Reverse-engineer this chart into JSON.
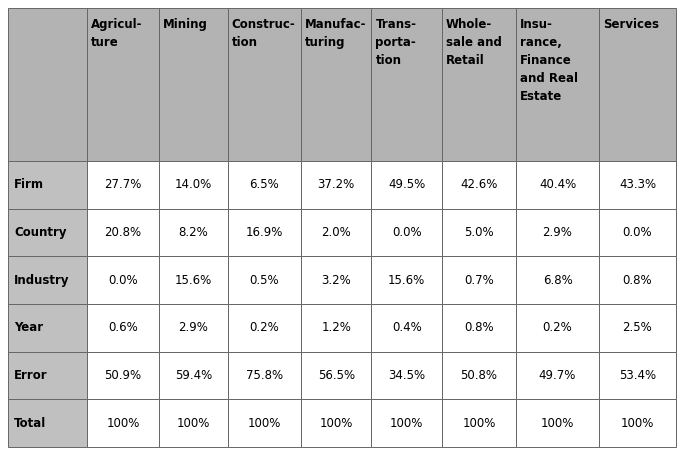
{
  "col_headers": [
    "Agricul-\nture",
    "Mining",
    "Construc-\ntion",
    "Manufac-\nturing",
    "Trans-\nporta-\ntion",
    "Whole-\nsale and\nRetail",
    "Insu-\nrance,\nFinance\nand Real\nEstate",
    "Services"
  ],
  "row_headers": [
    "Firm",
    "Country",
    "Industry",
    "Year",
    "Error",
    "Total"
  ],
  "data": [
    [
      "27.7%",
      "14.0%",
      "6.5%",
      "37.2%",
      "49.5%",
      "42.6%",
      "40.4%",
      "43.3%"
    ],
    [
      "20.8%",
      "8.2%",
      "16.9%",
      "2.0%",
      "0.0%",
      "5.0%",
      "2.9%",
      "0.0%"
    ],
    [
      "0.0%",
      "15.6%",
      "0.5%",
      "3.2%",
      "15.6%",
      "0.7%",
      "6.8%",
      "0.8%"
    ],
    [
      "0.6%",
      "2.9%",
      "0.2%",
      "1.2%",
      "0.4%",
      "0.8%",
      "0.2%",
      "2.5%"
    ],
    [
      "50.9%",
      "59.4%",
      "75.8%",
      "56.5%",
      "34.5%",
      "50.8%",
      "49.7%",
      "53.4%"
    ],
    [
      "100%",
      "100%",
      "100%",
      "100%",
      "100%",
      "100%",
      "100%",
      "100%"
    ]
  ],
  "header_bg": "#b3b3b3",
  "row_header_bg": "#c0c0c0",
  "cell_bg": "#ffffff",
  "grid_color": "#666666",
  "text_color": "#000000",
  "header_text_color": "#000000",
  "font_size": 8.5,
  "header_font_size": 8.5,
  "row_header_font_size": 8.5,
  "fig_width": 6.84,
  "fig_height": 4.55
}
